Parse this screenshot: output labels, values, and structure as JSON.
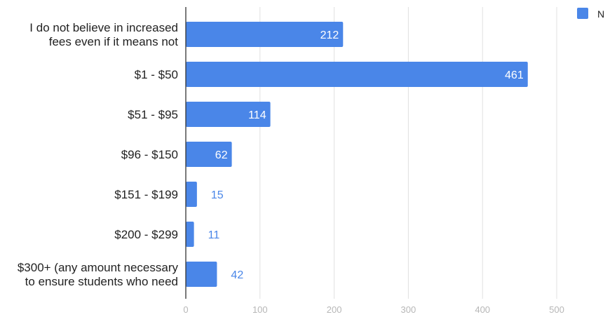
{
  "chart_data": {
    "type": "bar",
    "orientation": "horizontal",
    "categories": [
      [
        "I do not believe in increased",
        "fees even if it means not"
      ],
      [
        "$1 - $50"
      ],
      [
        "$51 - $95"
      ],
      [
        "$96 - $150"
      ],
      [
        "$151 - $199"
      ],
      [
        "$200 - $299"
      ],
      [
        "$300+ (any amount necessary",
        "to ensure students who need"
      ]
    ],
    "series": [
      {
        "name": "N",
        "values": [
          212,
          461,
          114,
          62,
          15,
          11,
          42
        ]
      }
    ],
    "xlim": [
      0,
      500
    ],
    "xticks": [
      0,
      100,
      200,
      300,
      400,
      500
    ],
    "grid": true,
    "data_labels": true,
    "legend": "top-right",
    "colors": {
      "bar": "#4a86e8",
      "grid": "#e0e0e0",
      "axis": "#333333"
    }
  }
}
